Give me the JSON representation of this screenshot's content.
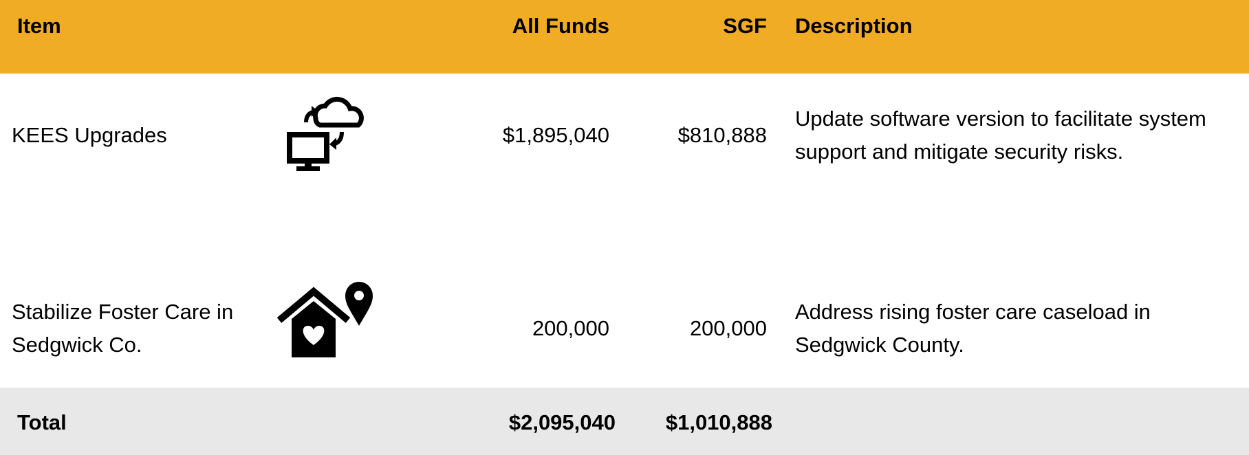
{
  "table": {
    "header": {
      "item": "Item",
      "all_funds": "All Funds",
      "sgf": "SGF",
      "description": "Description"
    },
    "rows": [
      {
        "item": "KEES Upgrades",
        "all_funds": "$1,895,040",
        "sgf": "$810,888",
        "description": "Update software version to facilitate system support and mitigate security risks."
      },
      {
        "item": "Stabilize Foster Care in Sedgwick Co.",
        "all_funds": "200,000",
        "sgf": "200,000",
        "description": "Address rising foster care caseload in Sedgwick County."
      }
    ],
    "total": {
      "item": "Total",
      "all_funds": "$2,095,040",
      "sgf": "$1,010,888"
    }
  }
}
